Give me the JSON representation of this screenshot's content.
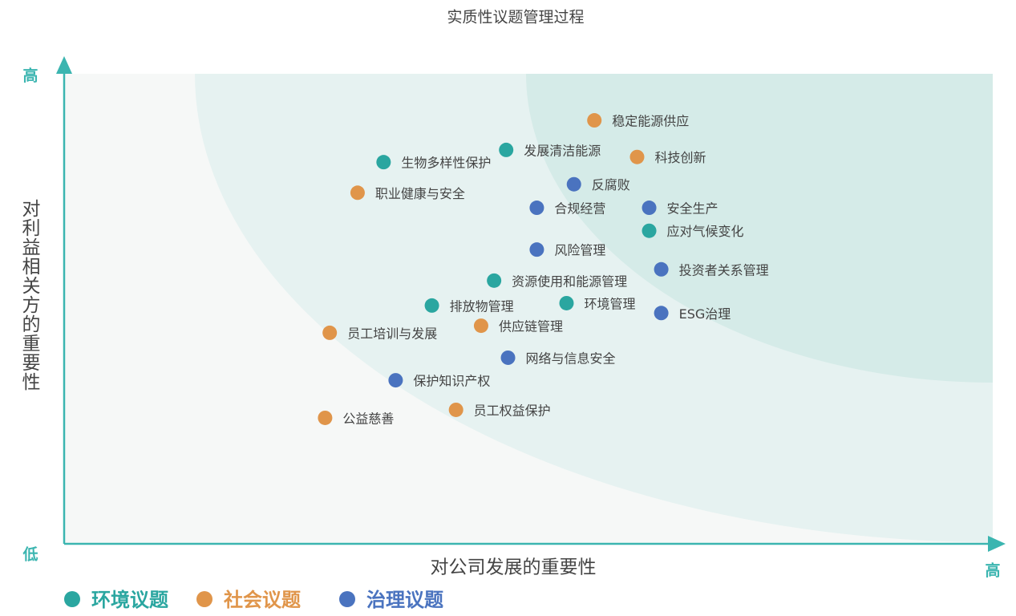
{
  "chart_data": {
    "type": "scatter",
    "title": "实质性议题管理过程",
    "x_label": "对公司发展的重要性",
    "y_label": "对利益相关方的重要性",
    "xlim": [
      0,
      100
    ],
    "ylim": [
      0,
      100
    ],
    "xticks": [
      {
        "value": 100,
        "label": "高"
      }
    ],
    "yticks": [
      {
        "value": 0,
        "label": "低"
      },
      {
        "value": 100,
        "label": "高"
      }
    ],
    "series": [
      {
        "name": "环境议题",
        "color": "#2aa6a0",
        "labels": [
          "生物多样性保护",
          "发展清洁能源",
          "应对气候变化",
          "资源使用和能源管理",
          "排放物管理",
          "环境管理"
        ],
        "x": [
          34.4,
          47.6,
          63.0,
          46.3,
          39.6,
          54.1
        ],
        "values": [
          81.2,
          83.8,
          66.6,
          56.0,
          50.7,
          51.2
        ]
      },
      {
        "name": "社会议题",
        "color": "#e0954a",
        "labels": [
          "稳定能源供应",
          "科技创新",
          "职业健康与安全",
          "员工培训与发展",
          "供应链管理",
          "公益慈善",
          "员工权益保护"
        ],
        "x": [
          57.1,
          61.7,
          31.6,
          28.6,
          44.9,
          28.1,
          42.2
        ],
        "values": [
          90.1,
          82.3,
          74.7,
          44.9,
          46.4,
          26.8,
          28.5
        ]
      },
      {
        "name": "治理议题",
        "color": "#4a73bf",
        "labels": [
          "反腐败",
          "合规经营",
          "安全生产",
          "风险管理",
          "投资者关系管理",
          "ESG治理",
          "网络与信息安全",
          "保护知识产权"
        ],
        "x": [
          54.9,
          50.9,
          63.0,
          50.9,
          64.3,
          64.3,
          47.8,
          35.7
        ],
        "values": [
          76.5,
          71.5,
          71.5,
          62.6,
          58.4,
          49.1,
          39.6,
          34.8
        ]
      }
    ]
  }
}
